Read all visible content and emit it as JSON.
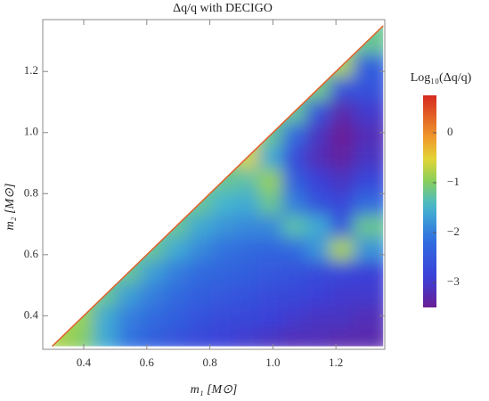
{
  "chart_data": {
    "type": "heatmap",
    "title": "Δq/q with DECIGO",
    "x_label": "m₁ [M⊙]",
    "y_label": "m₂ [M⊙]",
    "xlim": [
      0.27,
      1.355
    ],
    "ylim": [
      0.29,
      1.37
    ],
    "xticks": [
      0.4,
      0.6,
      0.8,
      {
        "value": 1,
        "label": "1.0"
      },
      1.2
    ],
    "yticks": [
      0.4,
      0.6,
      0.8,
      {
        "value": 1,
        "label": "1.0"
      },
      1.2
    ],
    "x": [
      0.3375,
      0.4125,
      0.4875,
      0.5625,
      0.6375,
      0.7125,
      0.7875,
      0.8625,
      0.9375,
      1.0125,
      1.0875,
      1.1625,
      1.2375,
      1.3125
    ],
    "y": [
      0.3375,
      0.4125,
      0.4875,
      0.5625,
      0.6375,
      0.7125,
      0.7875,
      0.8625,
      0.9375,
      1.0125,
      1.0875,
      1.1625,
      1.2375,
      1.3125
    ],
    "z": [
      [
        -0.8,
        -1.0,
        -1.6,
        -2.1,
        -2.4,
        -2.6,
        -2.8,
        -2.9,
        -3.0,
        -3.1,
        -3.2,
        -3.2,
        -3.3,
        -3.3
      ],
      [
        null,
        -0.9,
        -1.6,
        -2.0,
        -2.2,
        -2.4,
        -2.6,
        -2.7,
        -2.8,
        -2.9,
        -3.0,
        -3.1,
        -3.1,
        -3.2
      ],
      [
        null,
        null,
        -1.2,
        -1.7,
        -2.0,
        -2.2,
        -2.4,
        -2.5,
        -2.6,
        -2.7,
        -2.8,
        -2.9,
        -3.0,
        -3.0
      ],
      [
        null,
        null,
        null,
        -1.2,
        -1.7,
        -2.0,
        -2.2,
        -2.3,
        -2.4,
        -2.5,
        -2.6,
        -2.7,
        -2.8,
        -2.9
      ],
      [
        null,
        null,
        null,
        null,
        -1.2,
        -1.6,
        -1.9,
        -2.1,
        -2.2,
        -2.3,
        -2.2,
        -1.8,
        -0.8,
        -1.8
      ],
      [
        null,
        null,
        null,
        null,
        null,
        -1.2,
        -1.6,
        -1.8,
        -1.9,
        -1.9,
        -1.3,
        -1.6,
        -2.5,
        -1.2
      ],
      [
        null,
        null,
        null,
        null,
        null,
        null,
        -1.2,
        -1.5,
        -1.6,
        -1.2,
        -2.0,
        -2.6,
        -2.8,
        -2.2
      ],
      [
        null,
        null,
        null,
        null,
        null,
        null,
        null,
        -1.2,
        -1.3,
        -0.9,
        -2.4,
        -2.9,
        -3.1,
        -2.8
      ],
      [
        null,
        null,
        null,
        null,
        null,
        null,
        null,
        null,
        -0.6,
        -1.6,
        -2.7,
        -3.2,
        -3.4,
        -3.1
      ],
      [
        null,
        null,
        null,
        null,
        null,
        null,
        null,
        null,
        null,
        -1.2,
        -2.2,
        -3.1,
        -3.5,
        -3.2
      ],
      [
        null,
        null,
        null,
        null,
        null,
        null,
        null,
        null,
        null,
        null,
        -1.2,
        -2.6,
        -3.3,
        -3.0
      ],
      [
        null,
        null,
        null,
        null,
        null,
        null,
        null,
        null,
        null,
        null,
        null,
        -1.1,
        -2.6,
        -2.6
      ],
      [
        null,
        null,
        null,
        null,
        null,
        null,
        null,
        null,
        null,
        null,
        null,
        null,
        -0.8,
        -2.4
      ],
      [
        null,
        null,
        null,
        null,
        null,
        null,
        null,
        null,
        null,
        null,
        null,
        null,
        null,
        -1.2
      ]
    ],
    "colorbar": {
      "title": "Log₁₀(Δq/q)",
      "clim": [
        -3.5,
        0.75
      ],
      "ticks": [
        0,
        {
          "value": -1,
          "label": "−1"
        },
        {
          "value": -2,
          "label": "−2"
        },
        {
          "value": -3,
          "label": "−3"
        }
      ]
    }
  }
}
